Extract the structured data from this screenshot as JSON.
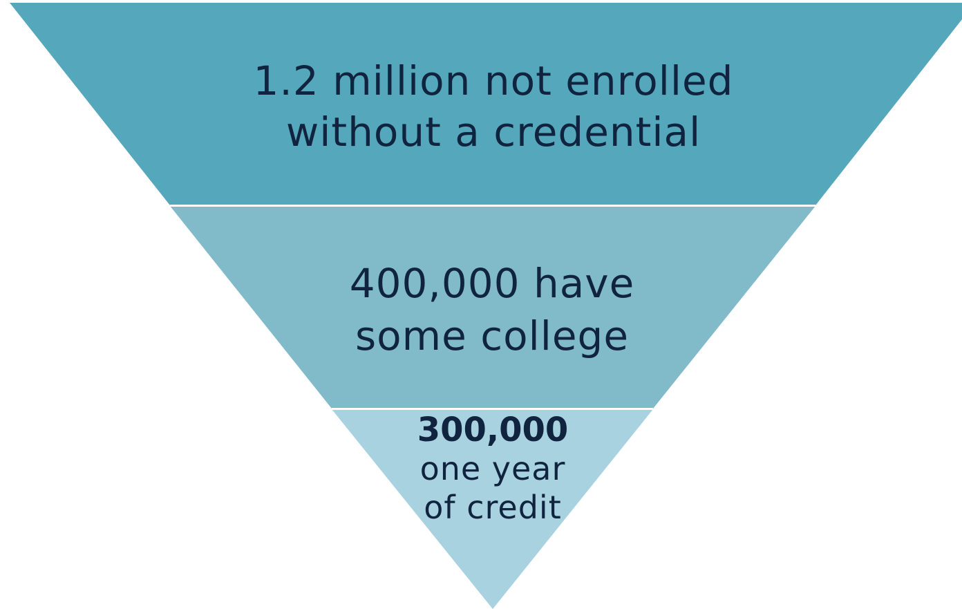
{
  "colors": {
    "tier_top": "#55A7BB",
    "tier_middle": "#81BBCA",
    "tier_bottom": "#A8D2DF",
    "text": "#10233F",
    "divider": "#FFFFFF"
  },
  "tiers": [
    {
      "lines": [
        "1.2 million not enrolled",
        "without a credential"
      ]
    },
    {
      "lines": [
        "400,000 have",
        "some college"
      ]
    },
    {
      "bold": "300,000",
      "lines": [
        "one year",
        "of credit"
      ]
    }
  ]
}
